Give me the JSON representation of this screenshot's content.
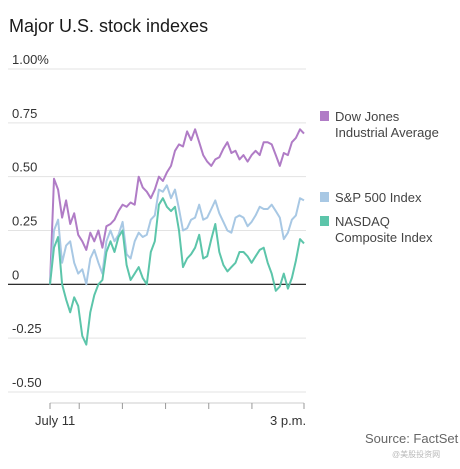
{
  "chart_data": {
    "type": "line",
    "title": "Major U.S. stock indexes",
    "source": "Source: FactSet",
    "watermark": "@美股投资网",
    "ylim": [
      -0.5,
      1.0
    ],
    "yticks": [
      {
        "v": 1.0,
        "label": "1.00%"
      },
      {
        "v": 0.75,
        "label": "0.75"
      },
      {
        "v": 0.5,
        "label": "0.50"
      },
      {
        "v": 0.25,
        "label": "0.25"
      },
      {
        "v": 0,
        "label": "0"
      },
      {
        "v": -0.25,
        "label": "-0.25"
      },
      {
        "v": -0.5,
        "label": "-0.50"
      }
    ],
    "x_start_label": "July 11",
    "x_end_label": "3 p.m.",
    "x_steps": 63,
    "grid": true,
    "legend_position": "right",
    "series": [
      {
        "name": "Dow Jones Industrial Average",
        "legend_lines": [
          "Dow Jones",
          "Industrial Average"
        ],
        "color": "#b07cc6",
        "values": [
          0.0,
          0.49,
          0.44,
          0.31,
          0.39,
          0.28,
          0.33,
          0.23,
          0.2,
          0.16,
          0.24,
          0.2,
          0.25,
          0.17,
          0.27,
          0.28,
          0.3,
          0.34,
          0.37,
          0.36,
          0.38,
          0.37,
          0.5,
          0.45,
          0.43,
          0.4,
          0.44,
          0.5,
          0.48,
          0.52,
          0.55,
          0.62,
          0.65,
          0.64,
          0.71,
          0.67,
          0.72,
          0.66,
          0.6,
          0.57,
          0.55,
          0.58,
          0.59,
          0.63,
          0.66,
          0.61,
          0.62,
          0.58,
          0.6,
          0.57,
          0.6,
          0.62,
          0.6,
          0.66,
          0.66,
          0.65,
          0.6,
          0.55,
          0.61,
          0.6,
          0.66,
          0.68,
          0.72,
          0.7
        ]
      },
      {
        "name": "S&P 500 Index",
        "legend_lines": [
          "S&P 500 Index"
        ],
        "color": "#a8c8e4",
        "values": [
          0.0,
          0.25,
          0.3,
          0.1,
          0.18,
          0.2,
          0.1,
          0.05,
          0.07,
          0.0,
          0.12,
          0.16,
          0.1,
          0.05,
          0.2,
          0.25,
          0.2,
          0.23,
          0.29,
          0.14,
          0.12,
          0.2,
          0.24,
          0.22,
          0.23,
          0.3,
          0.32,
          0.44,
          0.43,
          0.46,
          0.4,
          0.44,
          0.35,
          0.25,
          0.26,
          0.3,
          0.31,
          0.37,
          0.3,
          0.31,
          0.35,
          0.39,
          0.33,
          0.29,
          0.25,
          0.24,
          0.31,
          0.32,
          0.31,
          0.27,
          0.29,
          0.32,
          0.36,
          0.35,
          0.35,
          0.37,
          0.34,
          0.31,
          0.21,
          0.24,
          0.3,
          0.32,
          0.4,
          0.39
        ]
      },
      {
        "name": "NASDAQ Composite Index",
        "legend_lines": [
          "NASDAQ",
          "Composite Index"
        ],
        "color": "#5cc5aa",
        "values": [
          0.0,
          0.17,
          0.22,
          0.0,
          -0.07,
          -0.13,
          -0.06,
          -0.1,
          -0.24,
          -0.28,
          -0.13,
          -0.05,
          0.0,
          0.02,
          0.15,
          0.2,
          0.15,
          0.22,
          0.25,
          0.09,
          0.02,
          0.05,
          0.08,
          0.03,
          0.0,
          0.15,
          0.2,
          0.37,
          0.4,
          0.36,
          0.34,
          0.36,
          0.25,
          0.08,
          0.12,
          0.14,
          0.17,
          0.23,
          0.12,
          0.13,
          0.21,
          0.28,
          0.15,
          0.09,
          0.06,
          0.08,
          0.1,
          0.15,
          0.15,
          0.13,
          0.1,
          0.13,
          0.16,
          0.17,
          0.1,
          0.05,
          -0.03,
          -0.01,
          0.05,
          -0.02,
          0.03,
          0.11,
          0.21,
          0.19
        ]
      }
    ]
  }
}
